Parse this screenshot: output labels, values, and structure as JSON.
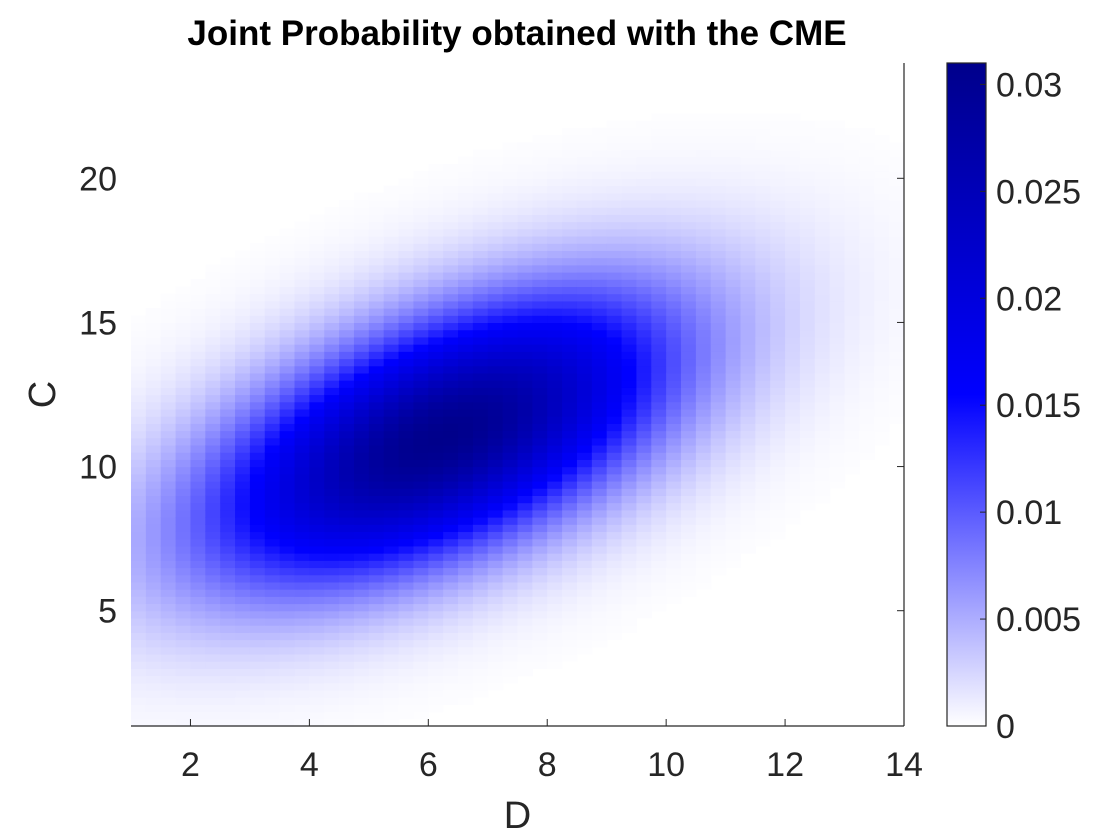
{
  "chart_data": {
    "type": "heatmap",
    "title": "Joint Probability obtained with the CME",
    "xlabel": "D",
    "ylabel": "C",
    "xlim": [
      1,
      14
    ],
    "ylim": [
      1,
      24
    ],
    "xticks": [
      2,
      4,
      6,
      8,
      10,
      12,
      14
    ],
    "yticks": [
      5,
      10,
      15,
      20
    ],
    "colorbar": {
      "range": [
        0,
        0.031
      ],
      "ticks": [
        0,
        0.005,
        0.01,
        0.015,
        0.02,
        0.025,
        0.03
      ],
      "tick_labels": [
        "0",
        "0.005",
        "0.01",
        "0.015",
        "0.02",
        "0.025",
        "0.03"
      ],
      "colormap": [
        "#ffffff",
        "#0000ff",
        "#00008b"
      ]
    },
    "distribution": {
      "shape": "bivariate gaussian (approximate)",
      "peak_D": 6.2,
      "peak_C": 11,
      "peak_value": 0.031,
      "sd_D": 2.7,
      "sd_C": 3.4,
      "correlation": 0.55
    }
  }
}
